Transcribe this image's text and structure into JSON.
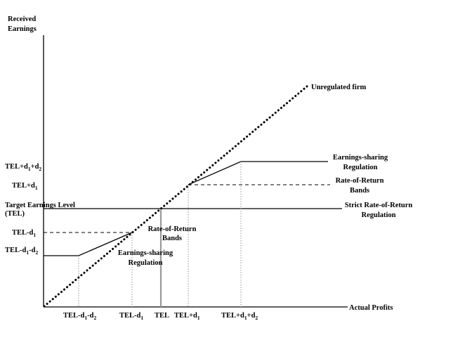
{
  "axes": {
    "y_label_line1": "Received",
    "y_label_line2": "Earnings",
    "x_label": "Actual Profits"
  },
  "y_ticks": {
    "tel_d1_d2": {
      "base": "TEL+d",
      "s1": "1",
      "mid": "+d",
      "s2": "2"
    },
    "tel_d1": {
      "base": "TEL+d",
      "s1": "1"
    },
    "target_line1": "Target Earnings Level",
    "target_line2": "(TEL)",
    "tel_minus_d1": {
      "base": "TEL-d",
      "s1": "1"
    },
    "tel_minus_d1_d2": {
      "base": "TEL-d",
      "s1": "1",
      "mid": "-d",
      "s2": "2"
    }
  },
  "x_ticks": {
    "tel_minus_d1_d2": {
      "base": "TEL-d",
      "s1": "1",
      "mid": "-d",
      "s2": "2"
    },
    "tel_minus_d1": {
      "base": "TEL-d",
      "s1": "1"
    },
    "tel": "TEL",
    "tel_plus_d1": {
      "base": "TEL+d",
      "s1": "1"
    },
    "tel_plus_d1_d2": {
      "base": "TEL+d",
      "s1": "1",
      "mid": "+d",
      "s2": "2"
    }
  },
  "annotations": {
    "unregulated": "Unregulated firm",
    "es_upper_1": "Earnings-sharing",
    "es_upper_2": "Regulation",
    "ror_upper_1": "Rate-of-Return",
    "ror_upper_2": "Bands",
    "strict_1": "Strict Rate-of-Return",
    "strict_2": "Regulation",
    "ror_lower_1": "Rate-of-Return",
    "ror_lower_2": "Bands",
    "es_lower_1": "Earnings-sharing",
    "es_lower_2": "Regulation"
  }
}
